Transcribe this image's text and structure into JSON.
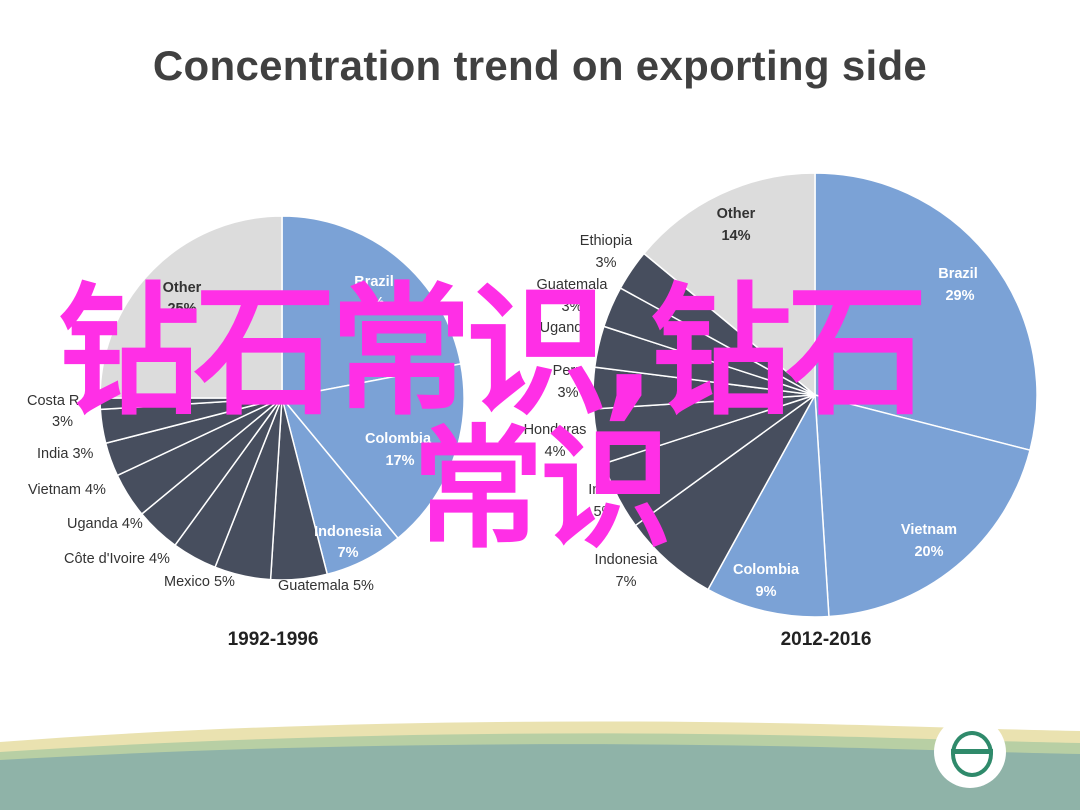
{
  "title": "Concentration trend on exporting side",
  "watermark": {
    "line1": "钻石常识,钻石",
    "line2": "常识",
    "color": "#ff2fe6"
  },
  "colors": {
    "blue": "#7ba2d6",
    "dark": "#474e5e",
    "other": "#dcdcdc",
    "separator": "#ffffff"
  },
  "chart_data": [
    {
      "type": "pie",
      "period": "1992-1996",
      "slices": [
        {
          "label": "Brazil",
          "value": "?%",
          "display_value": "%",
          "pct": 22,
          "color": "#7ba2d6"
        },
        {
          "label": "Colombia",
          "value": "17%",
          "display_value": "17%",
          "pct": 17,
          "color": "#7ba2d6"
        },
        {
          "label": "Indonesia",
          "value": "7%",
          "display_value": "7%",
          "pct": 7,
          "color": "#7ba2d6"
        },
        {
          "label": "Guatemala",
          "value": "5%",
          "display_value": "5%",
          "pct": 5,
          "color": "#474e5e"
        },
        {
          "label": "Mexico",
          "value": "5%",
          "display_value": "5%",
          "pct": 5,
          "color": "#474e5e"
        },
        {
          "label": "Côte d'Ivoire",
          "value": "4%",
          "display_value": "4%",
          "pct": 4,
          "color": "#474e5e"
        },
        {
          "label": "Uganda",
          "value": "4%",
          "display_value": "4%",
          "pct": 4,
          "color": "#474e5e"
        },
        {
          "label": "Vietnam",
          "value": "4%",
          "display_value": "4%",
          "pct": 4,
          "color": "#474e5e"
        },
        {
          "label": "India",
          "value": "3%",
          "display_value": "3%",
          "pct": 3,
          "color": "#474e5e"
        },
        {
          "label": "Costa R",
          "value": "3%",
          "display_value": "3%",
          "pct": 3,
          "color": "#474e5e"
        },
        {
          "label": "",
          "value": "",
          "display_value": "",
          "pct": 1,
          "color": "#474e5e"
        },
        {
          "label": "Other",
          "value": "25%",
          "display_value": "25%",
          "pct": 25,
          "color": "#dcdcdc"
        }
      ]
    },
    {
      "type": "pie",
      "period": "2012-2016",
      "slices": [
        {
          "label": "Brazil",
          "value": "29%",
          "display_value": "29%",
          "pct": 29,
          "color": "#7ba2d6"
        },
        {
          "label": "Vietnam",
          "value": "20%",
          "display_value": "20%",
          "pct": 20,
          "color": "#7ba2d6"
        },
        {
          "label": "Colombia",
          "value": "9%",
          "display_value": "9%",
          "pct": 9,
          "color": "#7ba2d6"
        },
        {
          "label": "Indonesia",
          "value": "7%",
          "display_value": "7%",
          "pct": 7,
          "color": "#474e5e"
        },
        {
          "label": "India",
          "value": "5%",
          "display_value": "5%",
          "pct": 5,
          "color": "#474e5e"
        },
        {
          "label": "Honduras",
          "value": "4%",
          "display_value": "4%",
          "pct": 4,
          "color": "#474e5e"
        },
        {
          "label": "Peru",
          "value": "3%",
          "display_value": "3%",
          "pct": 3,
          "color": "#474e5e"
        },
        {
          "label": "Uganda",
          "value": "3%",
          "display_value": "3%",
          "pct": 3,
          "color": "#474e5e"
        },
        {
          "label": "Guatemala",
          "value": "3%",
          "display_value": "3%",
          "pct": 3,
          "color": "#474e5e"
        },
        {
          "label": "Ethiopia",
          "value": "3%",
          "display_value": "3%",
          "pct": 3,
          "color": "#474e5e"
        },
        {
          "label": "Other",
          "value": "14%",
          "display_value": "14%",
          "pct": 14,
          "color": "#dcdcdc"
        }
      ]
    }
  ]
}
